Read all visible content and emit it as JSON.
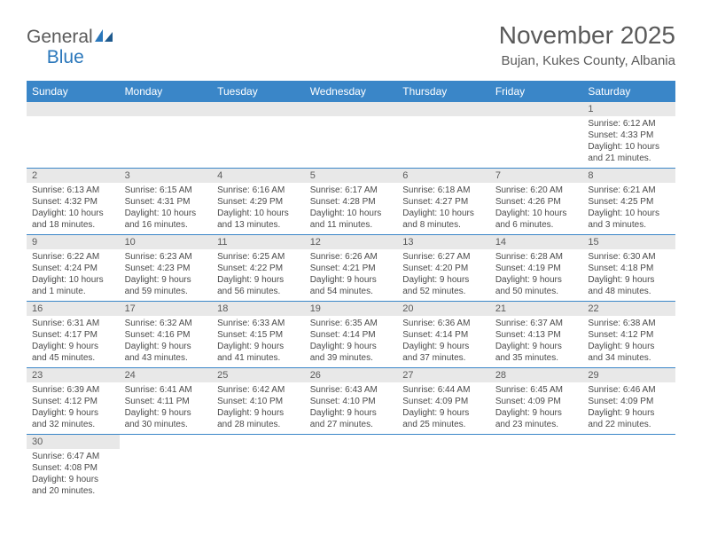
{
  "logo": {
    "text1": "General",
    "text2": "Blue"
  },
  "title": "November 2025",
  "subtitle": "Bujan, Kukes County, Albania",
  "colors": {
    "header_bg": "#3a86c8",
    "header_fg": "#ffffff",
    "daybar_bg": "#e8e8e8",
    "text": "#5a5a5a",
    "rule": "#3a86c8"
  },
  "dayNames": [
    "Sunday",
    "Monday",
    "Tuesday",
    "Wednesday",
    "Thursday",
    "Friday",
    "Saturday"
  ],
  "weeks": [
    [
      {
        "n": "",
        "sr": "",
        "ss": "",
        "dl": ""
      },
      {
        "n": "",
        "sr": "",
        "ss": "",
        "dl": ""
      },
      {
        "n": "",
        "sr": "",
        "ss": "",
        "dl": ""
      },
      {
        "n": "",
        "sr": "",
        "ss": "",
        "dl": ""
      },
      {
        "n": "",
        "sr": "",
        "ss": "",
        "dl": ""
      },
      {
        "n": "",
        "sr": "",
        "ss": "",
        "dl": ""
      },
      {
        "n": "1",
        "sr": "Sunrise: 6:12 AM",
        "ss": "Sunset: 4:33 PM",
        "dl": "Daylight: 10 hours and 21 minutes."
      }
    ],
    [
      {
        "n": "2",
        "sr": "Sunrise: 6:13 AM",
        "ss": "Sunset: 4:32 PM",
        "dl": "Daylight: 10 hours and 18 minutes."
      },
      {
        "n": "3",
        "sr": "Sunrise: 6:15 AM",
        "ss": "Sunset: 4:31 PM",
        "dl": "Daylight: 10 hours and 16 minutes."
      },
      {
        "n": "4",
        "sr": "Sunrise: 6:16 AM",
        "ss": "Sunset: 4:29 PM",
        "dl": "Daylight: 10 hours and 13 minutes."
      },
      {
        "n": "5",
        "sr": "Sunrise: 6:17 AM",
        "ss": "Sunset: 4:28 PM",
        "dl": "Daylight: 10 hours and 11 minutes."
      },
      {
        "n": "6",
        "sr": "Sunrise: 6:18 AM",
        "ss": "Sunset: 4:27 PM",
        "dl": "Daylight: 10 hours and 8 minutes."
      },
      {
        "n": "7",
        "sr": "Sunrise: 6:20 AM",
        "ss": "Sunset: 4:26 PM",
        "dl": "Daylight: 10 hours and 6 minutes."
      },
      {
        "n": "8",
        "sr": "Sunrise: 6:21 AM",
        "ss": "Sunset: 4:25 PM",
        "dl": "Daylight: 10 hours and 3 minutes."
      }
    ],
    [
      {
        "n": "9",
        "sr": "Sunrise: 6:22 AM",
        "ss": "Sunset: 4:24 PM",
        "dl": "Daylight: 10 hours and 1 minute."
      },
      {
        "n": "10",
        "sr": "Sunrise: 6:23 AM",
        "ss": "Sunset: 4:23 PM",
        "dl": "Daylight: 9 hours and 59 minutes."
      },
      {
        "n": "11",
        "sr": "Sunrise: 6:25 AM",
        "ss": "Sunset: 4:22 PM",
        "dl": "Daylight: 9 hours and 56 minutes."
      },
      {
        "n": "12",
        "sr": "Sunrise: 6:26 AM",
        "ss": "Sunset: 4:21 PM",
        "dl": "Daylight: 9 hours and 54 minutes."
      },
      {
        "n": "13",
        "sr": "Sunrise: 6:27 AM",
        "ss": "Sunset: 4:20 PM",
        "dl": "Daylight: 9 hours and 52 minutes."
      },
      {
        "n": "14",
        "sr": "Sunrise: 6:28 AM",
        "ss": "Sunset: 4:19 PM",
        "dl": "Daylight: 9 hours and 50 minutes."
      },
      {
        "n": "15",
        "sr": "Sunrise: 6:30 AM",
        "ss": "Sunset: 4:18 PM",
        "dl": "Daylight: 9 hours and 48 minutes."
      }
    ],
    [
      {
        "n": "16",
        "sr": "Sunrise: 6:31 AM",
        "ss": "Sunset: 4:17 PM",
        "dl": "Daylight: 9 hours and 45 minutes."
      },
      {
        "n": "17",
        "sr": "Sunrise: 6:32 AM",
        "ss": "Sunset: 4:16 PM",
        "dl": "Daylight: 9 hours and 43 minutes."
      },
      {
        "n": "18",
        "sr": "Sunrise: 6:33 AM",
        "ss": "Sunset: 4:15 PM",
        "dl": "Daylight: 9 hours and 41 minutes."
      },
      {
        "n": "19",
        "sr": "Sunrise: 6:35 AM",
        "ss": "Sunset: 4:14 PM",
        "dl": "Daylight: 9 hours and 39 minutes."
      },
      {
        "n": "20",
        "sr": "Sunrise: 6:36 AM",
        "ss": "Sunset: 4:14 PM",
        "dl": "Daylight: 9 hours and 37 minutes."
      },
      {
        "n": "21",
        "sr": "Sunrise: 6:37 AM",
        "ss": "Sunset: 4:13 PM",
        "dl": "Daylight: 9 hours and 35 minutes."
      },
      {
        "n": "22",
        "sr": "Sunrise: 6:38 AM",
        "ss": "Sunset: 4:12 PM",
        "dl": "Daylight: 9 hours and 34 minutes."
      }
    ],
    [
      {
        "n": "23",
        "sr": "Sunrise: 6:39 AM",
        "ss": "Sunset: 4:12 PM",
        "dl": "Daylight: 9 hours and 32 minutes."
      },
      {
        "n": "24",
        "sr": "Sunrise: 6:41 AM",
        "ss": "Sunset: 4:11 PM",
        "dl": "Daylight: 9 hours and 30 minutes."
      },
      {
        "n": "25",
        "sr": "Sunrise: 6:42 AM",
        "ss": "Sunset: 4:10 PM",
        "dl": "Daylight: 9 hours and 28 minutes."
      },
      {
        "n": "26",
        "sr": "Sunrise: 6:43 AM",
        "ss": "Sunset: 4:10 PM",
        "dl": "Daylight: 9 hours and 27 minutes."
      },
      {
        "n": "27",
        "sr": "Sunrise: 6:44 AM",
        "ss": "Sunset: 4:09 PM",
        "dl": "Daylight: 9 hours and 25 minutes."
      },
      {
        "n": "28",
        "sr": "Sunrise: 6:45 AM",
        "ss": "Sunset: 4:09 PM",
        "dl": "Daylight: 9 hours and 23 minutes."
      },
      {
        "n": "29",
        "sr": "Sunrise: 6:46 AM",
        "ss": "Sunset: 4:09 PM",
        "dl": "Daylight: 9 hours and 22 minutes."
      }
    ],
    [
      {
        "n": "30",
        "sr": "Sunrise: 6:47 AM",
        "ss": "Sunset: 4:08 PM",
        "dl": "Daylight: 9 hours and 20 minutes."
      },
      {
        "n": "",
        "sr": "",
        "ss": "",
        "dl": ""
      },
      {
        "n": "",
        "sr": "",
        "ss": "",
        "dl": ""
      },
      {
        "n": "",
        "sr": "",
        "ss": "",
        "dl": ""
      },
      {
        "n": "",
        "sr": "",
        "ss": "",
        "dl": ""
      },
      {
        "n": "",
        "sr": "",
        "ss": "",
        "dl": ""
      },
      {
        "n": "",
        "sr": "",
        "ss": "",
        "dl": ""
      }
    ]
  ]
}
